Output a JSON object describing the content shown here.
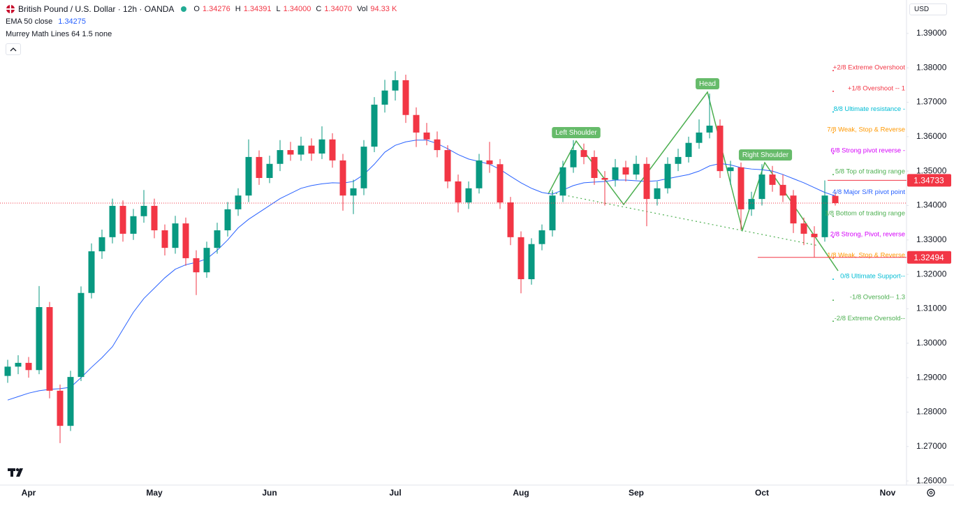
{
  "chart_data": {
    "type": "candlestick",
    "title": "British Pound / U.S. Dollar · 12h · OANDA",
    "ohlc": [
      {
        "label": "O",
        "value": "1.34276"
      },
      {
        "label": "H",
        "value": "1.34391"
      },
      {
        "label": "L",
        "value": "1.34000"
      },
      {
        "label": "C",
        "value": "1.34070"
      },
      {
        "label": "Vol",
        "value": "94.33 K"
      }
    ],
    "indicators": [
      {
        "name": "EMA 50 close",
        "value": "1.34275"
      },
      {
        "name": "Murrey Math Lines 64 1.5 none"
      }
    ],
    "currency": "USD",
    "categories": [
      null,
      null,
      "Apr",
      null,
      null,
      null,
      null,
      null,
      null,
      null,
      null,
      null,
      null,
      null,
      "May",
      null,
      null,
      null,
      null,
      null,
      null,
      null,
      null,
      null,
      null,
      "Jun",
      null,
      null,
      null,
      null,
      null,
      null,
      null,
      null,
      null,
      null,
      null,
      "Jul",
      null,
      null,
      null,
      null,
      null,
      null,
      null,
      null,
      null,
      null,
      null,
      "Aug",
      null,
      null,
      null,
      null,
      null,
      null,
      null,
      null,
      null,
      null,
      "Sep",
      null,
      null,
      null,
      null,
      null,
      null,
      null,
      null,
      null,
      null,
      null,
      "Oct",
      null,
      null,
      null,
      null,
      null,
      null,
      null,
      null,
      null,
      null,
      null,
      "Nov"
    ],
    "candles": {
      "open": [
        1.2905,
        1.2932,
        1.2943,
        1.2922,
        1.3105,
        1.2862,
        1.276,
        1.2902,
        1.3146,
        1.3267,
        1.3308,
        1.3399,
        1.3318,
        1.3369,
        1.3399,
        1.3328,
        1.3277,
        1.3348,
        1.3247,
        1.3206,
        1.3277,
        1.3328,
        1.3389,
        1.3429,
        1.3541,
        1.348,
        1.3521,
        1.3561,
        1.3548,
        1.3574,
        1.3551,
        1.3592,
        1.3531,
        1.3429,
        1.345,
        1.3571,
        1.3693,
        1.3734,
        1.3764,
        1.3663,
        1.3612,
        1.3592,
        1.3561,
        1.347,
        1.3409,
        1.345,
        1.3531,
        1.352,
        1.3409,
        1.3308,
        1.3186,
        1.3288,
        1.3328,
        1.3429,
        1.3511,
        1.3561,
        1.3541,
        1.348,
        1.3475,
        1.3511,
        1.349,
        1.3521,
        1.3419,
        1.345,
        1.3521,
        1.3541,
        1.3582,
        1.3612,
        1.3632,
        1.35,
        1.3511,
        1.3389,
        1.3419,
        1.349,
        1.346,
        1.3429,
        1.3348,
        1.3318,
        1.3308,
        1.3428,
        null,
        null,
        null,
        null,
        null
      ],
      "high": [
        1.2952,
        1.2965,
        1.296,
        1.3166,
        1.312,
        1.288,
        1.292,
        1.3165,
        1.329,
        1.333,
        1.342,
        1.3415,
        1.339,
        1.3445,
        1.342,
        1.3345,
        1.337,
        1.3365,
        1.327,
        1.3295,
        1.335,
        1.341,
        1.345,
        1.3592,
        1.356,
        1.3545,
        1.359,
        1.3585,
        1.36,
        1.3595,
        1.363,
        1.361,
        1.355,
        1.3475,
        1.359,
        1.3715,
        1.3765,
        1.379,
        1.378,
        1.3685,
        1.364,
        1.3615,
        1.3575,
        1.349,
        1.347,
        1.355,
        1.3585,
        1.3535,
        1.3425,
        1.3325,
        1.3305,
        1.3345,
        1.3445,
        1.353,
        1.359,
        1.358,
        1.356,
        1.35,
        1.3535,
        1.353,
        1.3545,
        1.354,
        1.347,
        1.354,
        1.3565,
        1.36,
        1.365,
        1.3725,
        1.365,
        1.353,
        1.3525,
        1.344,
        1.352,
        1.3515,
        1.349,
        1.3445,
        1.3365,
        1.334,
        1.3473,
        1.3439,
        null,
        null,
        null,
        null,
        null
      ],
      "low": [
        1.2885,
        1.291,
        1.29,
        1.291,
        1.284,
        1.271,
        1.2745,
        1.289,
        1.313,
        1.3245,
        1.329,
        1.3295,
        1.33,
        1.335,
        1.3305,
        1.3255,
        1.326,
        1.3225,
        1.314,
        1.319,
        1.326,
        1.331,
        1.337,
        1.341,
        1.346,
        1.3465,
        1.35,
        1.353,
        1.353,
        1.353,
        1.3535,
        1.351,
        1.3385,
        1.3375,
        1.343,
        1.3555,
        1.367,
        1.3705,
        1.364,
        1.357,
        1.3575,
        1.354,
        1.345,
        1.338,
        1.339,
        1.3435,
        1.3495,
        1.339,
        1.3285,
        1.3145,
        1.317,
        1.327,
        1.331,
        1.341,
        1.3495,
        1.352,
        1.346,
        1.34,
        1.3455,
        1.347,
        1.3475,
        1.334,
        1.34,
        1.3435,
        1.35,
        1.3525,
        1.3565,
        1.3595,
        1.348,
        1.346,
        1.333,
        1.337,
        1.34,
        1.344,
        1.341,
        1.332,
        1.3285,
        1.3249,
        1.3295,
        1.34,
        null,
        null,
        null,
        null,
        null
      ],
      "close": [
        1.2932,
        1.2943,
        1.2922,
        1.3105,
        1.2862,
        1.276,
        1.2902,
        1.3146,
        1.3267,
        1.3308,
        1.3399,
        1.3318,
        1.3369,
        1.3399,
        1.3328,
        1.3277,
        1.3348,
        1.3247,
        1.3206,
        1.3277,
        1.3328,
        1.3389,
        1.3429,
        1.3541,
        1.348,
        1.3521,
        1.3561,
        1.3548,
        1.3574,
        1.3551,
        1.3592,
        1.3531,
        1.3429,
        1.345,
        1.3571,
        1.3693,
        1.3734,
        1.3764,
        1.3663,
        1.3612,
        1.3592,
        1.3561,
        1.347,
        1.3409,
        1.345,
        1.3531,
        1.352,
        1.3409,
        1.3308,
        1.3186,
        1.3288,
        1.3328,
        1.3429,
        1.3511,
        1.3561,
        1.3541,
        1.348,
        1.3475,
        1.3511,
        1.349,
        1.3521,
        1.3419,
        1.345,
        1.3521,
        1.3541,
        1.3582,
        1.3612,
        1.3632,
        1.35,
        1.3511,
        1.3389,
        1.3419,
        1.349,
        1.346,
        1.3429,
        1.3348,
        1.3318,
        1.3308,
        1.3429,
        1.3407,
        null,
        null,
        null,
        null,
        null
      ]
    },
    "colors": {
      "up": "#089981",
      "down": "#f23645"
    },
    "ema": {
      "color": "#2962ff",
      "values": [
        1.2835,
        1.2845,
        1.2855,
        1.2862,
        1.2866,
        1.2868,
        1.2872,
        1.29,
        1.293,
        1.2958,
        1.299,
        1.304,
        1.309,
        1.313,
        1.316,
        1.319,
        1.3215,
        1.3228,
        1.3235,
        1.3245,
        1.327,
        1.33,
        1.3335,
        1.336,
        1.338,
        1.34,
        1.342,
        1.3435,
        1.345,
        1.3458,
        1.3463,
        1.3466,
        1.3465,
        1.347,
        1.349,
        1.352,
        1.3555,
        1.3575,
        1.3585,
        1.359,
        1.359,
        1.358,
        1.3565,
        1.3548,
        1.3535,
        1.3528,
        1.352,
        1.3505,
        1.3485,
        1.3466,
        1.345,
        1.3438,
        1.3433,
        1.3445,
        1.3458,
        1.3466,
        1.3468,
        1.347,
        1.3474,
        1.3474,
        1.3472,
        1.347,
        1.3472,
        1.3478,
        1.3484,
        1.349,
        1.35,
        1.3515,
        1.3522,
        1.3518,
        1.351,
        1.3506,
        1.3504,
        1.35,
        1.349,
        1.3478,
        1.3466,
        1.3452,
        1.3438,
        1.3428,
        null,
        null,
        null,
        null,
        null
      ]
    },
    "ylim": [
      1.2588,
      1.3997
    ],
    "yticks": [
      {
        "value": 1.39,
        "label": "1.39000"
      },
      {
        "value": 1.38,
        "label": "1.38000"
      },
      {
        "value": 1.37,
        "label": "1.37000"
      },
      {
        "value": 1.36,
        "label": "1.36000"
      },
      {
        "value": 1.35,
        "label": "1.35000"
      },
      {
        "value": 1.34,
        "label": "1.34000"
      },
      {
        "value": 1.33,
        "label": "1.33000"
      },
      {
        "value": 1.32,
        "label": "1.32000"
      },
      {
        "value": 1.31,
        "label": "1.31000"
      },
      {
        "value": 1.3,
        "label": "1.30000"
      },
      {
        "value": 1.29,
        "label": "1.29000"
      },
      {
        "value": 1.28,
        "label": "1.28000"
      },
      {
        "value": 1.27,
        "label": "1.27000"
      },
      {
        "value": 1.26,
        "label": "1.26000"
      }
    ],
    "murrey": [
      {
        "label": "+2/8 Extreme Overshoot",
        "value": 1.38,
        "color": "#f23645"
      },
      {
        "label": "+1/8 Overshoot --  1",
        "value": 1.374,
        "color": "#f23645"
      },
      {
        "label": "8/8 Ultimate resistance -",
        "value": 1.368,
        "color": "#00bcd4"
      },
      {
        "label": "7/8 Weak, Stop & Reverse",
        "value": 1.362,
        "color": "#ff9800"
      },
      {
        "label": "6/8 Strong pivot reverse -",
        "value": 1.3559,
        "color": "#d500f9"
      },
      {
        "label": "5/8 Top of trading range",
        "value": 1.3498,
        "color": "#4caf50"
      },
      {
        "label": "4/8 Major S/R pivot point",
        "value": 1.3438,
        "color": "#2962ff"
      },
      {
        "label": "3/8 Bottom of trading range",
        "value": 1.3377,
        "color": "#4caf50"
      },
      {
        "label": "2/8 Strong, Pivot, reverse",
        "value": 1.3316,
        "color": "#d500f9"
      },
      {
        "label": "1/8 Weak, Stop & Reverse",
        "value": 1.3255,
        "color": "#ff9800"
      },
      {
        "label": "0/8 Ultimate Support--",
        "value": 1.3194,
        "color": "#00bcd4"
      },
      {
        "label": "-1/8 Oversold--  1.3",
        "value": 1.3133,
        "color": "#4caf50"
      },
      {
        "label": "-2/8 Extreme Oversold--",
        "value": 1.3072,
        "color": "#4caf50"
      }
    ],
    "price_lines": [
      {
        "value": 1.34733,
        "color": "#f23645"
      },
      {
        "value": 1.32494,
        "color": "#f23645"
      }
    ],
    "annotations": [
      "Left Shoulder",
      "Head",
      "Right Shoulder"
    ]
  }
}
